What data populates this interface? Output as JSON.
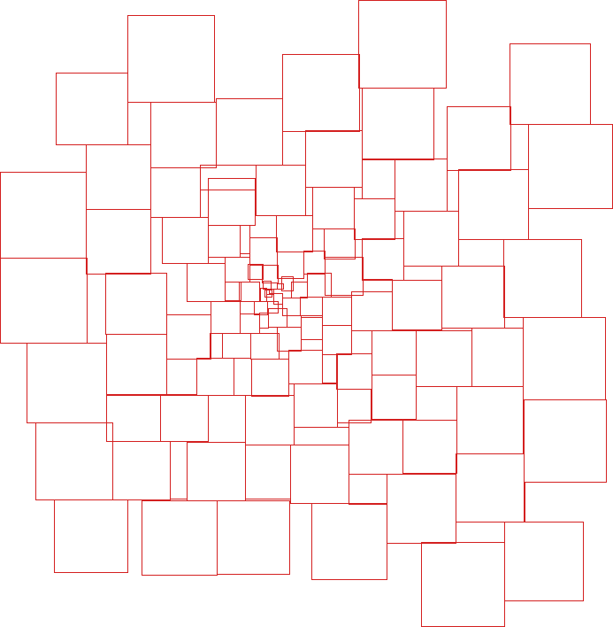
{
  "artwork": {
    "background": "#ffffff",
    "stroke_color": "#d42020",
    "motif": "spiral-of-squares"
  }
}
